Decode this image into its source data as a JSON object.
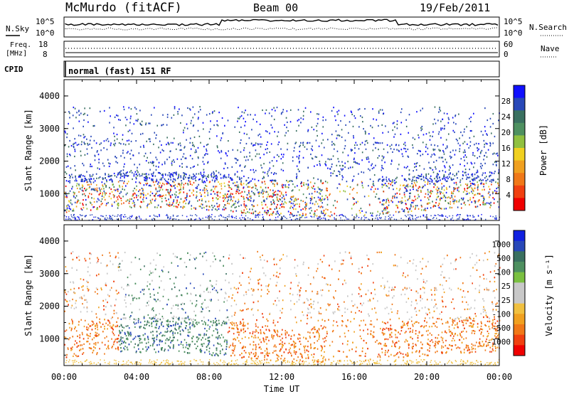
{
  "header": {
    "station": "McMurdo (fitACF)",
    "beam": "Beam 00",
    "date": "19/Feb/2011"
  },
  "strip_panels": {
    "noise": {
      "left_label": "N.Sky",
      "right_label": "N.Search",
      "ticks_left": [
        "10^5",
        "10^0"
      ],
      "ticks_right": [
        "10^5",
        "10^0"
      ]
    },
    "freq": {
      "left_label_line1": "Freq.",
      "left_label_line2": "[MHz]",
      "right_label": "Nave",
      "ticks_left": [
        "18",
        "8"
      ],
      "ticks_right": [
        "60",
        "0"
      ]
    },
    "cpid": {
      "left_label": "CPID",
      "text": "normal (fast) 151 RF"
    }
  },
  "chart_data": [
    {
      "type": "heatmap",
      "name": "power",
      "ylabel": "Slant Range [km]",
      "ylim": [
        180,
        4500
      ],
      "yticks": [
        "1000",
        "2000",
        "3000",
        "4000"
      ],
      "xlim": [
        0,
        24
      ],
      "xticks": [
        "00:00",
        "04:00",
        "08:00",
        "12:00",
        "16:00",
        "20:00",
        "00:00"
      ],
      "colorbar": {
        "label": "Power [dB]",
        "ticks": [
          "4",
          "8",
          "12",
          "16",
          "20",
          "24",
          "28"
        ],
        "colors": [
          "#1010ff",
          "#2848b8",
          "#3a7060",
          "#4e9060",
          "#90c040",
          "#f0d020",
          "#f0a020",
          "#f07818",
          "#f04010",
          "#f00000"
        ]
      }
    },
    {
      "type": "heatmap",
      "name": "velocity",
      "ylabel": "Slant Range [km]",
      "ylim": [
        180,
        4500
      ],
      "yticks": [
        "1000",
        "2000",
        "3000",
        "4000"
      ],
      "xlim": [
        0,
        24
      ],
      "xticks": [
        "00:00",
        "04:00",
        "08:00",
        "12:00",
        "16:00",
        "20:00",
        "00:00"
      ],
      "xlabel": "Time UT",
      "colorbar": {
        "label": "Velocity [m s⁻¹]",
        "ticks": [
          "1000",
          "500",
          "100",
          "25",
          "-25",
          "-100",
          "-500",
          "-1000"
        ],
        "colors": [
          "#1020e0",
          "#2848b8",
          "#3a7060",
          "#4e9060",
          "#7ac040",
          "#c8c8c8",
          "#c8c8c8",
          "#f0c040",
          "#f0a020",
          "#f07818",
          "#f04010",
          "#f00000"
        ]
      }
    }
  ]
}
